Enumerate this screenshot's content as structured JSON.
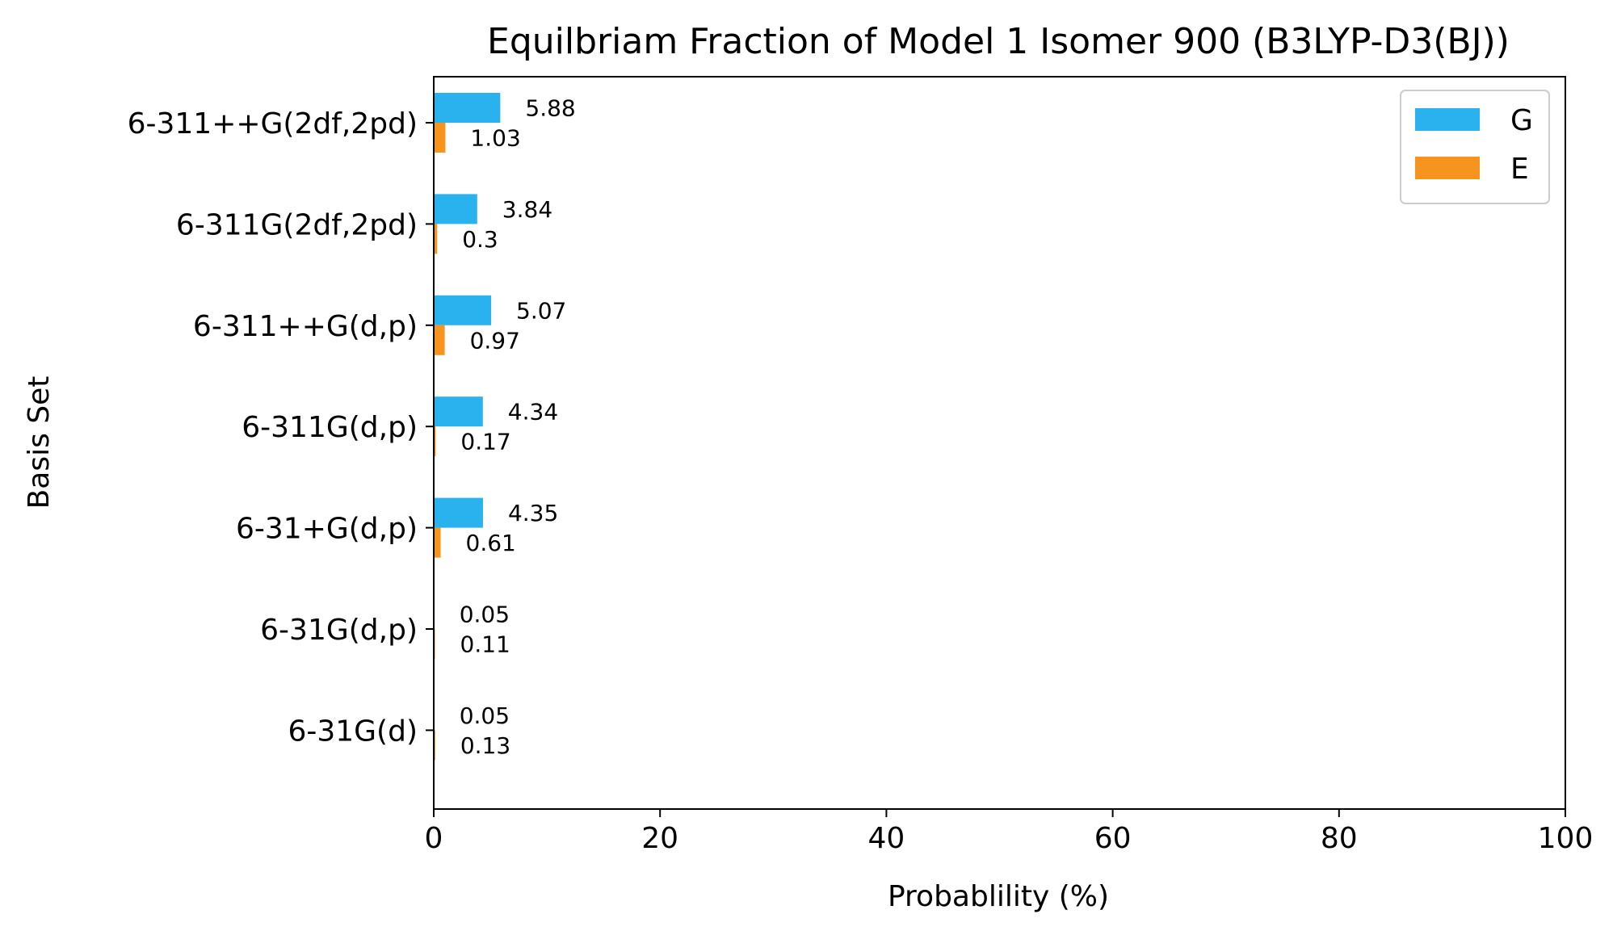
{
  "chart_data": {
    "type": "bar",
    "orientation": "horizontal",
    "title": "Equilbriam Fraction of Model 1 Isomer 900 (B3LYP-D3(BJ))",
    "xlabel": "Probablility (%)",
    "ylabel": "Basis Set",
    "xlim": [
      0,
      100
    ],
    "xticks": [
      0,
      20,
      40,
      60,
      80,
      100
    ],
    "categories": [
      "6-311++G(2df,2pd)",
      "6-311G(2df,2pd)",
      "6-311++G(d,p)",
      "6-311G(d,p)",
      "6-31+G(d,p)",
      "6-31G(d,p)",
      "6-31G(d)"
    ],
    "series": [
      {
        "name": "G",
        "color": "#29b2ee",
        "values": [
          5.88,
          3.84,
          5.07,
          4.34,
          4.35,
          0.05,
          0.05
        ],
        "labels": [
          "5.88",
          "3.84",
          "5.07",
          "4.34",
          "4.35",
          "0.05",
          "0.05"
        ]
      },
      {
        "name": "E",
        "color": "#f7941d",
        "values": [
          1.03,
          0.3,
          0.97,
          0.17,
          0.61,
          0.11,
          0.13
        ],
        "labels": [
          "1.03",
          "0.3",
          "0.97",
          "0.17",
          "0.61",
          "0.11",
          "0.13"
        ]
      }
    ],
    "legend": {
      "position": "top-right"
    },
    "grid": false
  }
}
